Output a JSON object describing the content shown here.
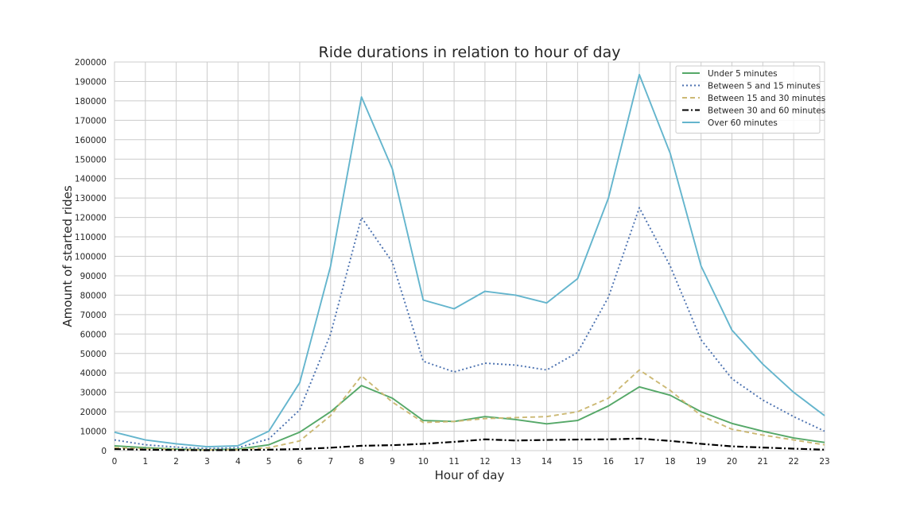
{
  "chart_data": {
    "type": "line",
    "title": "Ride durations in relation to hour of day",
    "xlabel": "Hour of day",
    "ylabel": "Amount of started rides",
    "x": [
      0,
      1,
      2,
      3,
      4,
      5,
      6,
      7,
      8,
      9,
      10,
      11,
      12,
      13,
      14,
      15,
      16,
      17,
      18,
      19,
      20,
      21,
      22,
      23
    ],
    "xlim": [
      0,
      23
    ],
    "ylim": [
      0,
      200000
    ],
    "xticks": [
      "0",
      "1",
      "2",
      "3",
      "4",
      "5",
      "6",
      "7",
      "8",
      "9",
      "10",
      "11",
      "12",
      "13",
      "14",
      "15",
      "16",
      "17",
      "18",
      "19",
      "20",
      "21",
      "22",
      "23"
    ],
    "yticks": [
      "0",
      "10000",
      "20000",
      "30000",
      "40000",
      "50000",
      "60000",
      "70000",
      "80000",
      "90000",
      "100000",
      "110000",
      "120000",
      "130000",
      "140000",
      "150000",
      "160000",
      "170000",
      "180000",
      "190000",
      "200000"
    ],
    "grid": true,
    "legend_position": "top-right",
    "series": [
      {
        "name": "Under 5 minutes",
        "color": "#55a868",
        "linestyle": "solid",
        "values": [
          2500,
          1500,
          800,
          500,
          800,
          3000,
          9500,
          20000,
          33500,
          27000,
          15500,
          15000,
          17500,
          16000,
          13800,
          15500,
          23000,
          32800,
          28500,
          20000,
          14000,
          10000,
          6500,
          4200
        ]
      },
      {
        "name": "Between 5 and 15 minutes",
        "color": "#4c72b0",
        "linestyle": "dotted",
        "values": [
          5500,
          3000,
          1800,
          1000,
          1500,
          6000,
          21000,
          60000,
          120000,
          97000,
          46000,
          40500,
          45000,
          44000,
          41500,
          50500,
          79000,
          125000,
          95000,
          57000,
          37000,
          26000,
          17500,
          10000
        ]
      },
      {
        "name": "Between 15 and 30 minutes",
        "color": "#ccb974",
        "linestyle": "dashed",
        "values": [
          1500,
          1000,
          600,
          400,
          500,
          1500,
          5000,
          18000,
          38500,
          25000,
          14500,
          15000,
          16500,
          17000,
          17500,
          20000,
          27000,
          41500,
          31000,
          18000,
          11000,
          8000,
          5500,
          3000
        ]
      },
      {
        "name": "Between 30 and 60 minutes",
        "color": "#000000",
        "linestyle": "dashdot",
        "values": [
          800,
          500,
          300,
          200,
          300,
          500,
          800,
          1500,
          2500,
          2800,
          3500,
          4500,
          5800,
          5200,
          5500,
          5700,
          5800,
          6200,
          5000,
          3500,
          2200,
          1600,
          1000,
          500
        ]
      },
      {
        "name": "Over 60 minutes",
        "color": "#64b5cd",
        "linestyle": "solid",
        "values": [
          9500,
          5500,
          3500,
          2000,
          2500,
          10000,
          35000,
          95000,
          182000,
          145000,
          77500,
          73000,
          82000,
          80000,
          76000,
          88500,
          130000,
          193500,
          153000,
          95000,
          62000,
          44500,
          30000,
          18000
        ]
      }
    ]
  }
}
